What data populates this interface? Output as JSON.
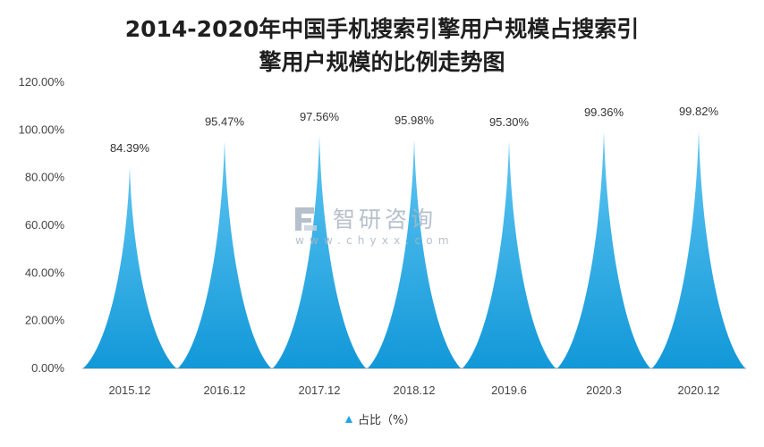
{
  "chart_data": {
    "type": "area",
    "title_lines": [
      "2014-2020年中国手机搜索引擎用户规模占搜索引",
      "擎用户规模的比例走势图"
    ],
    "categories": [
      "2015.12",
      "2016.12",
      "2017.12",
      "2018.12",
      "2019.6",
      "2020.3",
      "2020.12"
    ],
    "series": [
      {
        "name": "占比（%）",
        "values": [
          84.39,
          95.47,
          97.56,
          95.98,
          95.3,
          99.36,
          99.82
        ],
        "labels": [
          "84.39%",
          "95.47%",
          "97.56%",
          "95.98%",
          "95.30%",
          "99.36%",
          "99.82%"
        ]
      }
    ],
    "y_ticks": [
      "0.00%",
      "20.00%",
      "40.00%",
      "60.00%",
      "80.00%",
      "100.00%",
      "120.00%"
    ],
    "ylim": [
      0,
      120
    ],
    "xlabel": "",
    "ylabel": "",
    "grid": false,
    "legend_position": "bottom-center",
    "colors": {
      "fill": "#1ca6e6",
      "fill_light": "#5fc6f2",
      "axis": "#999999"
    }
  },
  "watermark": {
    "brand": "智研咨询",
    "url": "www.chyxx.com"
  }
}
